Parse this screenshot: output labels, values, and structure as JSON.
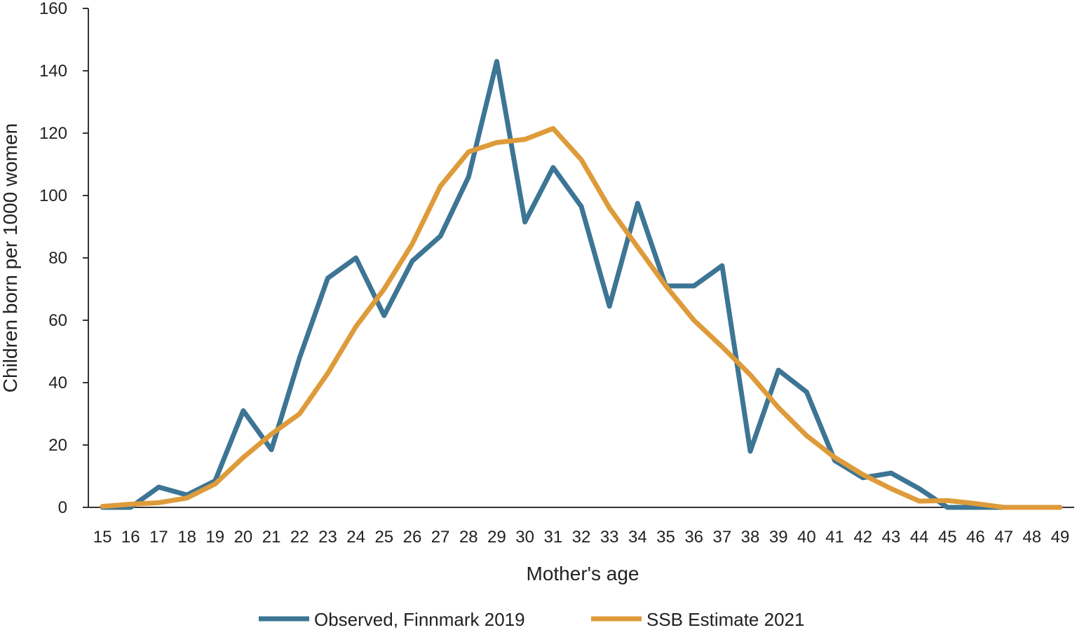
{
  "chart_data": {
    "type": "line",
    "title": "",
    "xlabel": "Mother's age",
    "ylabel": "Children born per 1000 women",
    "ylim": [
      0,
      160
    ],
    "yticks": [
      0,
      20,
      40,
      60,
      80,
      100,
      120,
      140,
      160
    ],
    "grid": false,
    "legend_position": "bottom",
    "x": [
      15,
      16,
      17,
      18,
      19,
      20,
      21,
      22,
      23,
      24,
      25,
      26,
      27,
      28,
      29,
      30,
      31,
      32,
      33,
      34,
      35,
      36,
      37,
      38,
      39,
      40,
      41,
      42,
      43,
      44,
      45,
      46,
      47,
      48,
      49
    ],
    "series": [
      {
        "name": "Observed, Finnmark 2019",
        "color": "#3d7594",
        "values": [
          0,
          0,
          6.5,
          4,
          8.5,
          31,
          18.5,
          48,
          73.5,
          80,
          61.5,
          79,
          87,
          106,
          143,
          91.5,
          109,
          96.5,
          64.5,
          97.5,
          71,
          71,
          77.5,
          18,
          44,
          37,
          15,
          9.5,
          11,
          6,
          0,
          0,
          0,
          0,
          0
        ]
      },
      {
        "name": "SSB Estimate 2021",
        "color": "#de9b3a",
        "values": [
          0.3,
          1,
          1.5,
          3,
          7.5,
          16,
          23.5,
          30,
          43,
          58,
          70,
          84.5,
          103,
          114,
          117,
          118,
          121.5,
          111.5,
          96,
          83.5,
          71,
          60,
          51.5,
          42.5,
          32,
          23,
          16,
          10.5,
          6,
          2,
          2.2,
          1.2,
          0,
          0,
          0
        ]
      }
    ]
  }
}
